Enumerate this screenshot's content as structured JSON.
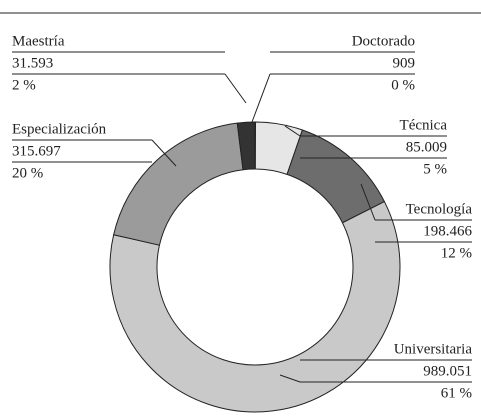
{
  "chart_data": {
    "type": "donut",
    "categories": [
      "Doctorado",
      "Técnica",
      "Tecnología",
      "Universitaria",
      "Especialización",
      "Maestría"
    ],
    "values": [
      909,
      85009,
      198466,
      989051,
      315697,
      31593
    ],
    "value_labels": [
      "909",
      "85.009",
      "198.466",
      "989.051",
      "315.697",
      "31.593"
    ],
    "percents": [
      0,
      5,
      12,
      61,
      20,
      2
    ],
    "percent_labels": [
      "0 %",
      "5 %",
      "12 %",
      "61 %",
      "20 %",
      "2 %"
    ],
    "colors": [
      "#ffffff",
      "#e6e6e6",
      "#6d6d6d",
      "#c9c9c9",
      "#9b9b9b",
      "#333333"
    ]
  }
}
